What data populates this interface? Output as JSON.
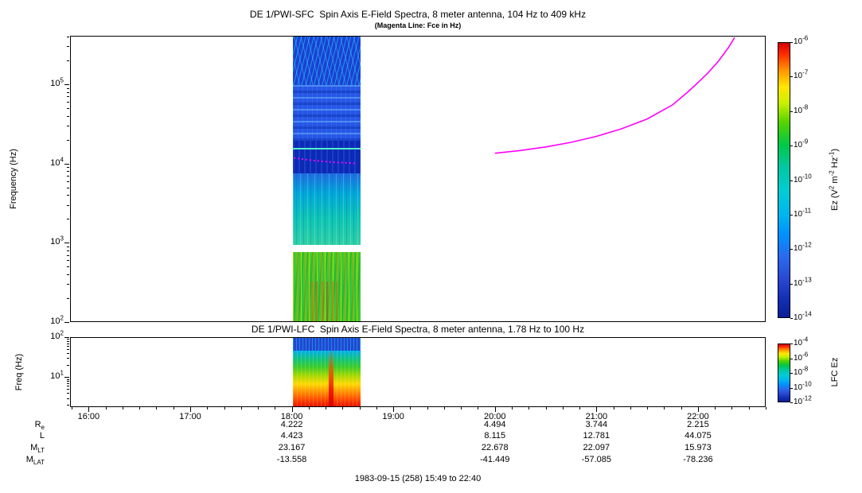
{
  "figure": {
    "footer": "1983-09-15 (258) 15:49 to 22:40",
    "background": "#ffffff",
    "fce_line_color": "#ff00ff"
  },
  "ephemeris": {
    "value_hours": [
      18,
      20,
      21,
      22
    ],
    "rows": [
      {
        "label_main": "R",
        "label_sub": "e",
        "values": [
          "4.222",
          "4.494",
          "3.744",
          "2.215"
        ]
      },
      {
        "label_main": "L",
        "label_sub": "",
        "values": [
          "4.423",
          "8.115",
          "12.781",
          "44.075"
        ]
      },
      {
        "label_main": "M",
        "label_sub": "LT",
        "values": [
          "23.167",
          "22.678",
          "22.097",
          "15.973"
        ]
      },
      {
        "label_main": "M",
        "label_sub": "LAT",
        "values": [
          "-13.558",
          "-41.449",
          "-57.085",
          "-78.236"
        ]
      }
    ]
  },
  "chart_data": [
    {
      "type": "heatmap",
      "panel": "SFC",
      "title": "DE 1/PWI-SFC  Spin Axis E-Field Spectra, 8 meter antenna, 104 Hz to 409 kHz",
      "subtitle": "(Magenta Line: Fce in Hz)",
      "ylabel": "Frequency (Hz)",
      "y_scale": "log",
      "y_range_hz": [
        100,
        409000
      ],
      "y_tick_exponents": [
        2,
        3,
        4,
        5
      ],
      "x_range_hours": [
        15.8167,
        22.6667
      ],
      "x_tick_hours": [
        16,
        17,
        18,
        19,
        20,
        21,
        22
      ],
      "x_tick_labels": [
        "16:00",
        "17:00",
        "18:00",
        "19:00",
        "20:00",
        "21:00",
        "22:00"
      ],
      "data_interval_hours": [
        18.0,
        18.67
      ],
      "colorbar": {
        "label": "Ez (V^2 m^-2 Hz^-1)",
        "tick_exponents": [
          -6,
          -7,
          -8,
          -9,
          -10,
          -11,
          -12,
          -13,
          -14
        ],
        "range": [
          1e-14,
          1e-06
        ]
      },
      "fce_line_color": "#ff00ff",
      "fce_burst_points": [
        [
          18.02,
          11800
        ],
        [
          18.12,
          11300
        ],
        [
          18.25,
          10800
        ],
        [
          18.4,
          10400
        ],
        [
          18.55,
          10200
        ],
        [
          18.64,
          10000
        ]
      ],
      "fce_curve_points": [
        [
          20.0,
          13500
        ],
        [
          20.25,
          14600
        ],
        [
          20.5,
          16200
        ],
        [
          20.75,
          18500
        ],
        [
          21.0,
          22000
        ],
        [
          21.25,
          27500
        ],
        [
          21.5,
          36500
        ],
        [
          21.75,
          55000
        ],
        [
          21.9,
          80000
        ],
        [
          22.0,
          105000
        ],
        [
          22.1,
          140000
        ],
        [
          22.2,
          195000
        ],
        [
          22.3,
          290000
        ],
        [
          22.36,
          390000
        ]
      ],
      "notes": "Single data burst 18:00-18:40: blue above 20 kHz with cyan streaks, dark blue band 8-20 kHz with bright cyan line near 15 kHz and magenta fce dots near 10 kHz, cyan 1-8 kHz, white gap near 900 Hz, green with yellow-orange streaks 100-900 Hz"
    },
    {
      "type": "heatmap",
      "panel": "LFC",
      "title": "DE 1/PWI-LFC  Spin Axis E-Field Spectra, 8 meter antenna, 1.78 Hz to 100 Hz",
      "ylabel": "Freq (Hz)",
      "y_scale": "log",
      "y_range_hz": [
        1.78,
        100
      ],
      "y_tick_exponents": [
        1,
        2
      ],
      "x_range_hours": [
        15.8167,
        22.6667
      ],
      "data_interval_hours": [
        18.0,
        18.67
      ],
      "colorbar": {
        "label": "LFC Ez",
        "tick_exponents": [
          -4,
          -6,
          -8,
          -10,
          -12
        ],
        "range": [
          1e-12,
          0.0001
        ]
      },
      "notes": "Same burst interval: blue/cyan above 30 Hz grading through green and yellow to orange-red below 8 Hz, intense red column near 18:22"
    }
  ]
}
